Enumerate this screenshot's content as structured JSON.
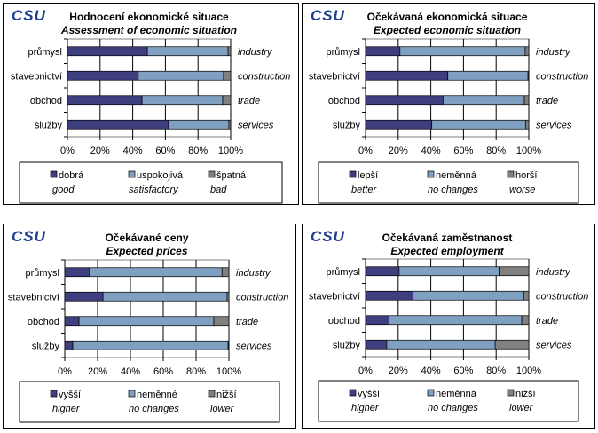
{
  "colors": {
    "dark": "#3f3f80",
    "light": "#7fa0c0",
    "gray": "#808080"
  },
  "logo_text": "CSU",
  "chart_data": [
    {
      "type": "bar",
      "stacked": "percent",
      "title": "Hodnocení  ekonomické situace",
      "subtitle": "Assessment of economic situation",
      "categories": [
        "průmysl",
        "stavebnictví",
        "obchod",
        "služby"
      ],
      "categories_en": [
        "industry",
        "construction",
        "trade",
        "services"
      ],
      "series": [
        {
          "name": "dobrá",
          "name_en": "good",
          "values": [
            49,
            43.4,
            45.7,
            61.9
          ]
        },
        {
          "name": "uspokojivá",
          "name_en": "satisfactory",
          "values": [
            49.4,
            52.2,
            49.4,
            37
          ]
        },
        {
          "name": "špatná",
          "name_en": "bad",
          "values": [
            1.6,
            4.4,
            4.9,
            1.1
          ]
        }
      ],
      "xticks": [
        "0%",
        "20%",
        "40%",
        "60%",
        "80%",
        "100%"
      ],
      "xlim": [
        0,
        100
      ],
      "legend": "bottom"
    },
    {
      "type": "bar",
      "stacked": "percent",
      "title": "Očekávaná  ekonomická situace",
      "subtitle": "Expected economic situation",
      "categories": [
        "průmysl",
        "stavebnictví",
        "obchod",
        "služby"
      ],
      "categories_en": [
        "industry",
        "construction",
        "trade",
        "services"
      ],
      "series": [
        {
          "name": "lepší",
          "name_en": "better",
          "values": [
            21.1,
            50.4,
            47.5,
            40.6
          ]
        },
        {
          "name": "neměnná",
          "name_en": "no changes",
          "values": [
            76.7,
            49.1,
            49.8,
            57.4
          ]
        },
        {
          "name": "horší",
          "name_en": "worse",
          "values": [
            2.2,
            0.5,
            2.7,
            2.0
          ]
        }
      ],
      "xticks": [
        "0%",
        "20%",
        "40%",
        "60%",
        "80%",
        "100%"
      ],
      "xlim": [
        0,
        100
      ],
      "legend": "bottom"
    },
    {
      "type": "bar",
      "stacked": "percent",
      "title": "Očekávané ceny",
      "subtitle": "Expected prices",
      "categories": [
        "průmysl",
        "stavebnictví",
        "obchod",
        "služby"
      ],
      "categories_en": [
        "industry",
        "construction",
        "trade",
        "services"
      ],
      "series": [
        {
          "name": "vyšší",
          "name_en": "higher",
          "values": [
            15.2,
            23.3,
            8.7,
            4.9
          ]
        },
        {
          "name": "neměnné",
          "name_en": "no changes",
          "values": [
            80.6,
            75.6,
            82.1,
            94.6
          ]
        },
        {
          "name": "nižší",
          "name_en": "lower",
          "values": [
            4.2,
            1.1,
            9.2,
            0.5
          ]
        }
      ],
      "xticks": [
        "0%",
        "20%",
        "40%",
        "60%",
        "80%",
        "100%"
      ],
      "xlim": [
        0,
        100
      ],
      "legend": "bottom"
    },
    {
      "type": "bar",
      "stacked": "percent",
      "title": "Očekávaná zaměstnanost",
      "subtitle": "Expected employment",
      "categories": [
        "průmysl",
        "stavebnictví",
        "obchod",
        "služby"
      ],
      "categories_en": [
        "industry",
        "construction",
        "trade",
        "services"
      ],
      "series": [
        {
          "name": "vyšší",
          "name_en": "higher",
          "values": [
            20.6,
            29.1,
            14.4,
            13.0
          ]
        },
        {
          "name": "neměnná",
          "name_en": "no changes",
          "values": [
            61.2,
            67.8,
            81.3,
            66.4
          ]
        },
        {
          "name": "nižší",
          "name_en": "lower",
          "values": [
            18.2,
            3.1,
            4.3,
            20.6
          ]
        }
      ],
      "xticks": [
        "0%",
        "20%",
        "40%",
        "60%",
        "80%",
        "100%"
      ],
      "xlim": [
        0,
        100
      ],
      "legend": "bottom"
    }
  ]
}
